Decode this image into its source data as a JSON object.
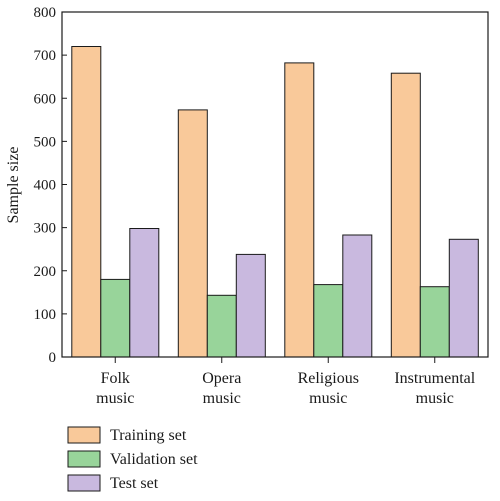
{
  "chart_data": {
    "type": "bar",
    "title": "",
    "xlabel": "",
    "ylabel": "Sample size",
    "ylim": [
      0,
      800
    ],
    "yticks": [
      0,
      100,
      200,
      300,
      400,
      500,
      600,
      700,
      800
    ],
    "categories": [
      [
        "Folk",
        "music"
      ],
      [
        "Opera",
        "music"
      ],
      [
        "Religious",
        "music"
      ],
      [
        "Instrumental",
        "music"
      ]
    ],
    "series": [
      {
        "name": "Training set",
        "color": "#f9c99a",
        "values": [
          720,
          573,
          682,
          658
        ]
      },
      {
        "name": "Validation set",
        "color": "#98d49a",
        "values": [
          180,
          143,
          168,
          163
        ]
      },
      {
        "name": "Test set",
        "color": "#c9b9df",
        "values": [
          298,
          238,
          283,
          273
        ]
      }
    ],
    "grid": false,
    "legend_position": "bottom-left"
  }
}
